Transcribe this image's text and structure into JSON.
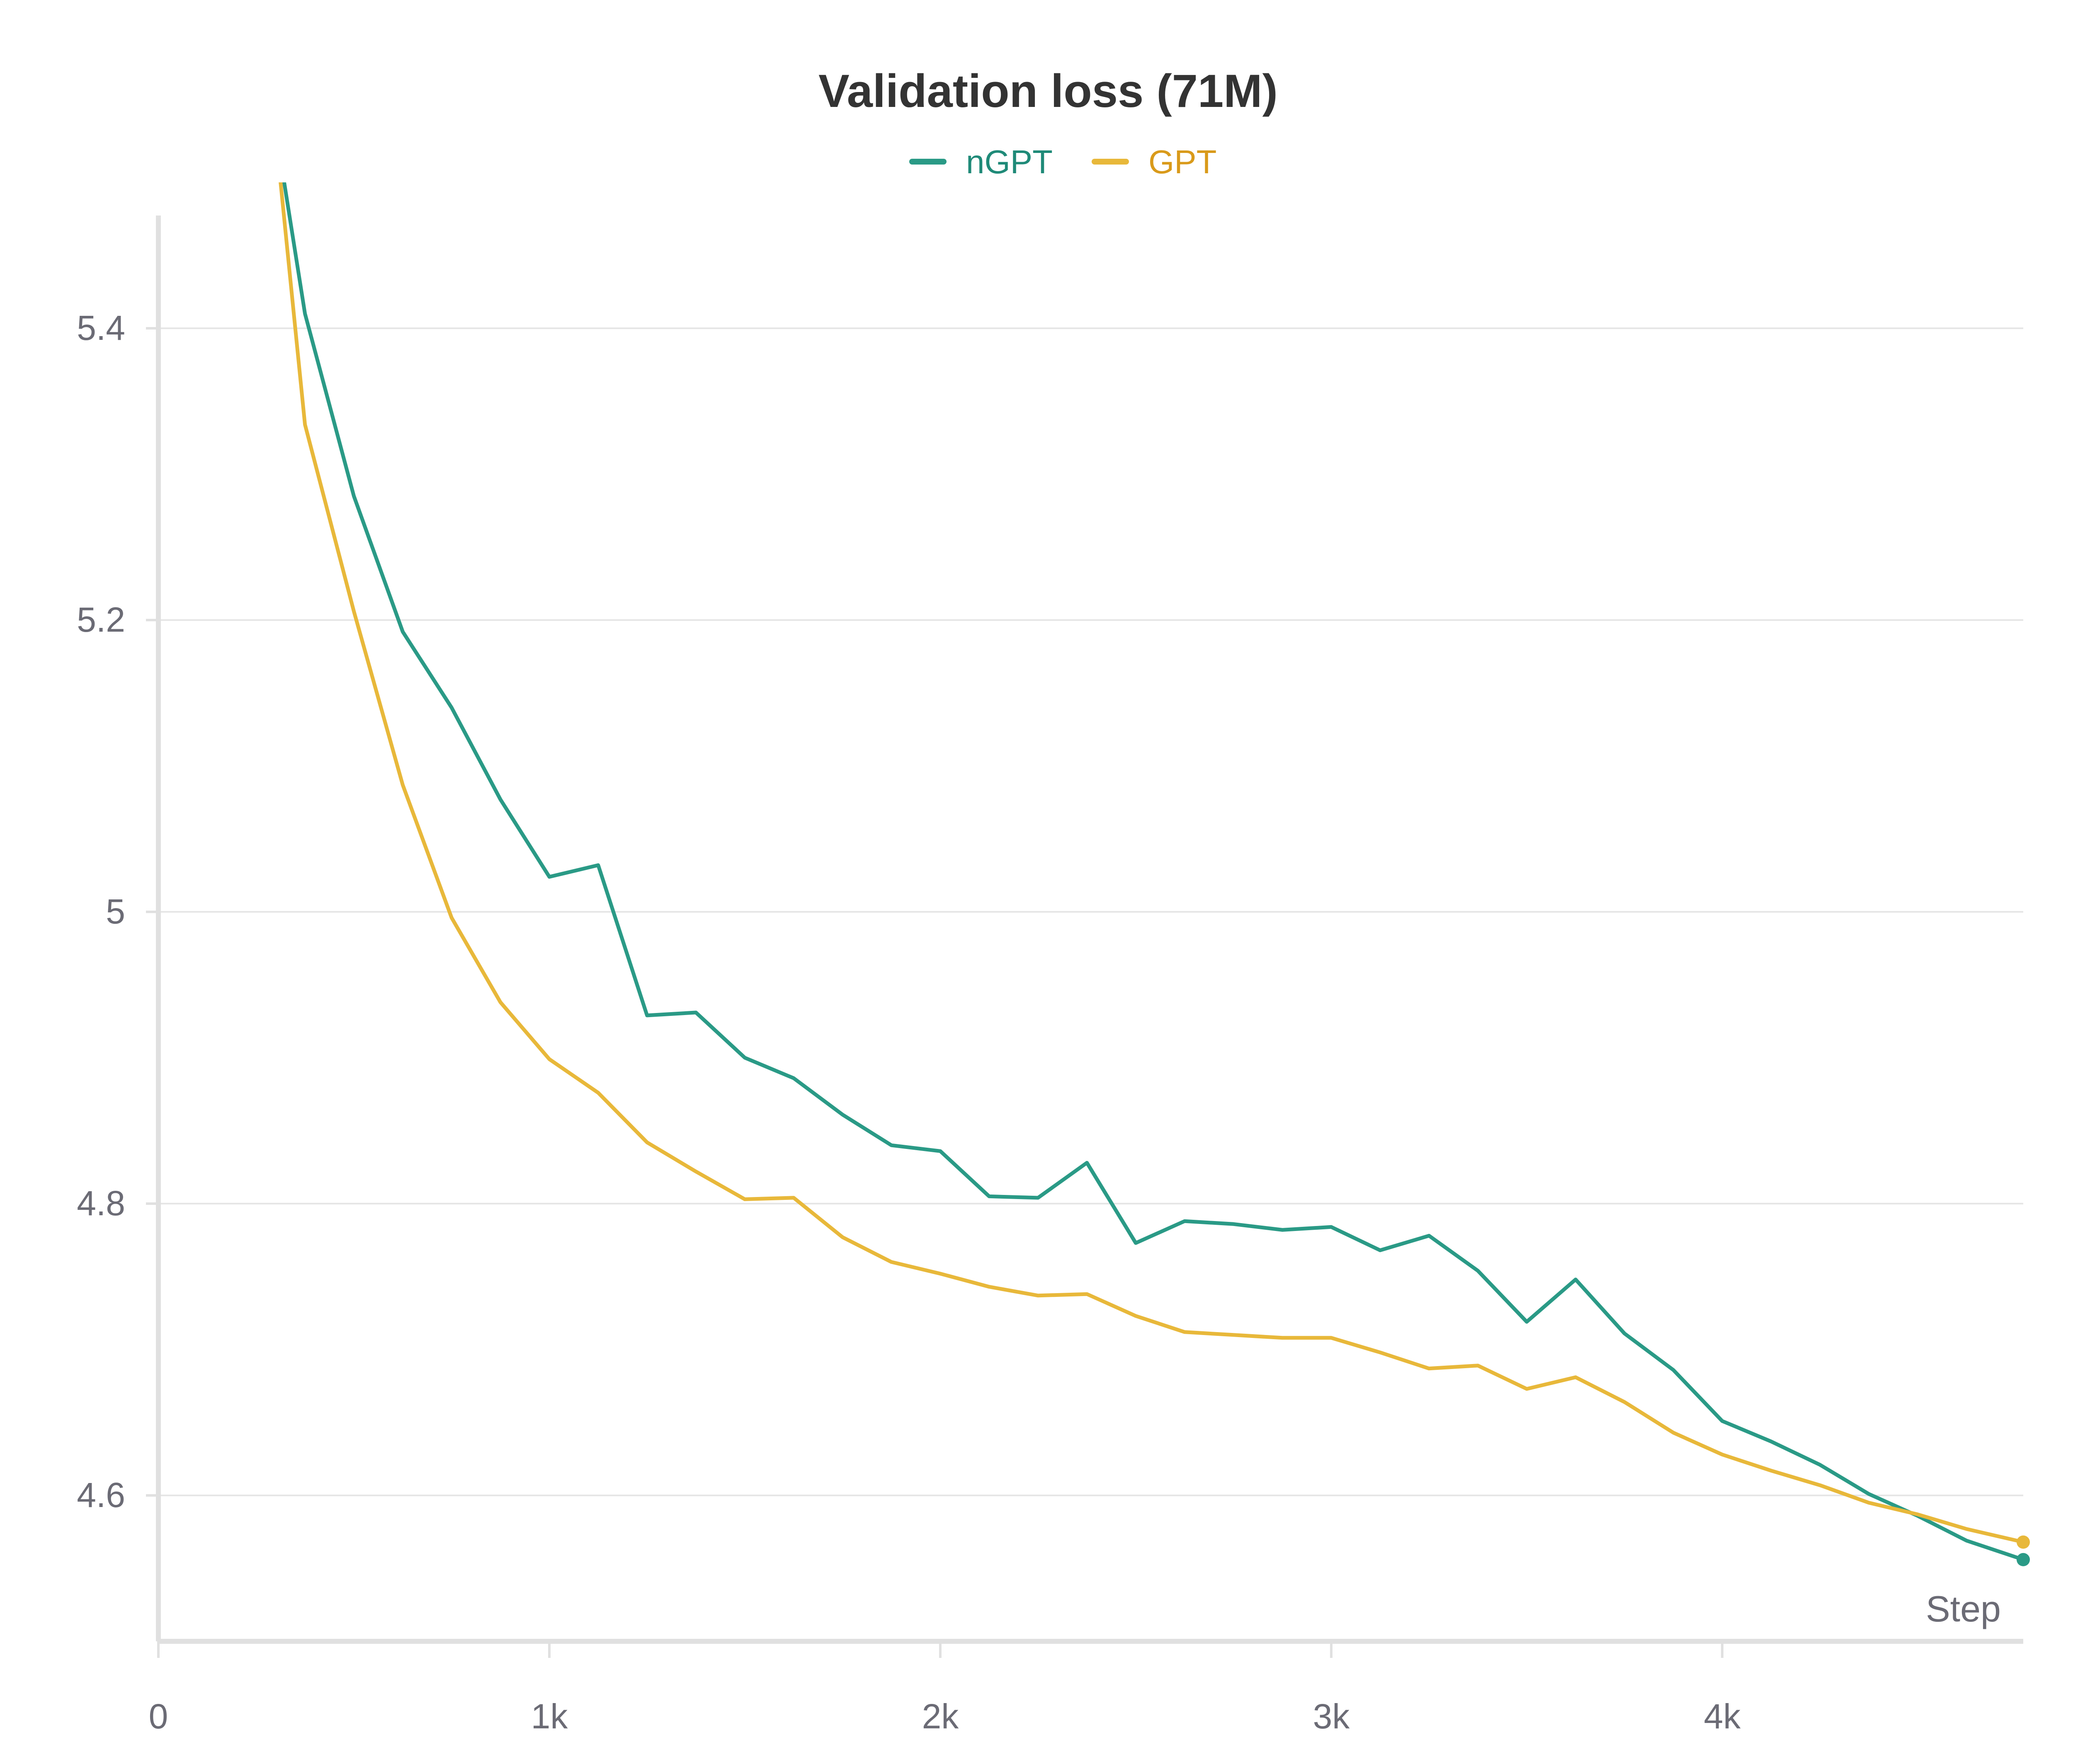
{
  "chart_data": {
    "type": "line",
    "title": "Validation loss (71M)",
    "xlabel": "Step",
    "ylabel": "",
    "xlim": [
      0,
      4770
    ],
    "ylim": [
      4.5,
      5.5
    ],
    "x_ticks": [
      {
        "value": 0,
        "label": "0"
      },
      {
        "value": 1000,
        "label": "1k"
      },
      {
        "value": 2000,
        "label": "2k"
      },
      {
        "value": 3000,
        "label": "3k"
      },
      {
        "value": 4000,
        "label": "4k"
      }
    ],
    "y_ticks": [
      {
        "value": 4.6,
        "label": "4.6"
      },
      {
        "value": 4.8,
        "label": "4.8"
      },
      {
        "value": 5.0,
        "label": "5"
      },
      {
        "value": 5.2,
        "label": "5.2"
      },
      {
        "value": 5.4,
        "label": "5.4"
      }
    ],
    "grid": true,
    "legend_position": "top-center",
    "series": [
      {
        "name": "nGPT",
        "color": "#2a9a86",
        "points": [
          [
            310,
            5.52
          ],
          [
            375,
            5.41
          ],
          [
            500,
            5.285
          ],
          [
            625,
            5.192
          ],
          [
            750,
            5.14
          ],
          [
            875,
            5.077
          ],
          [
            1000,
            5.024
          ],
          [
            1125,
            5.032
          ],
          [
            1250,
            4.929
          ],
          [
            1375,
            4.931
          ],
          [
            1500,
            4.9
          ],
          [
            1625,
            4.886
          ],
          [
            1750,
            4.861
          ],
          [
            1875,
            4.84
          ],
          [
            2000,
            4.836
          ],
          [
            2125,
            4.805
          ],
          [
            2250,
            4.804
          ],
          [
            2375,
            4.828
          ],
          [
            2500,
            4.773
          ],
          [
            2625,
            4.788
          ],
          [
            2750,
            4.786
          ],
          [
            2875,
            4.782
          ],
          [
            3000,
            4.784
          ],
          [
            3125,
            4.768
          ],
          [
            3250,
            4.778
          ],
          [
            3375,
            4.754
          ],
          [
            3500,
            4.719
          ],
          [
            3625,
            4.748
          ],
          [
            3750,
            4.711
          ],
          [
            3875,
            4.686
          ],
          [
            4000,
            4.651
          ],
          [
            4125,
            4.637
          ],
          [
            4250,
            4.621
          ],
          [
            4375,
            4.601
          ],
          [
            4500,
            4.586
          ],
          [
            4625,
            4.569
          ],
          [
            4770,
            4.556
          ]
        ]
      },
      {
        "name": "GPT",
        "color": "#e8b83a",
        "points": [
          [
            305,
            5.52
          ],
          [
            375,
            5.334
          ],
          [
            500,
            5.206
          ],
          [
            625,
            5.087
          ],
          [
            750,
            4.996
          ],
          [
            875,
            4.938
          ],
          [
            1000,
            4.899
          ],
          [
            1125,
            4.876
          ],
          [
            1250,
            4.842
          ],
          [
            1375,
            4.822
          ],
          [
            1500,
            4.803
          ],
          [
            1625,
            4.804
          ],
          [
            1750,
            4.777
          ],
          [
            1875,
            4.76
          ],
          [
            2000,
            4.752
          ],
          [
            2125,
            4.743
          ],
          [
            2250,
            4.737
          ],
          [
            2375,
            4.738
          ],
          [
            2500,
            4.723
          ],
          [
            2625,
            4.712
          ],
          [
            2750,
            4.71
          ],
          [
            2875,
            4.708
          ],
          [
            3000,
            4.708
          ],
          [
            3125,
            4.698
          ],
          [
            3250,
            4.687
          ],
          [
            3375,
            4.689
          ],
          [
            3500,
            4.673
          ],
          [
            3625,
            4.681
          ],
          [
            3750,
            4.664
          ],
          [
            3875,
            4.643
          ],
          [
            4000,
            4.628
          ],
          [
            4125,
            4.617
          ],
          [
            4250,
            4.607
          ],
          [
            4375,
            4.595
          ],
          [
            4500,
            4.587
          ],
          [
            4625,
            4.577
          ],
          [
            4770,
            4.568
          ]
        ]
      }
    ]
  }
}
